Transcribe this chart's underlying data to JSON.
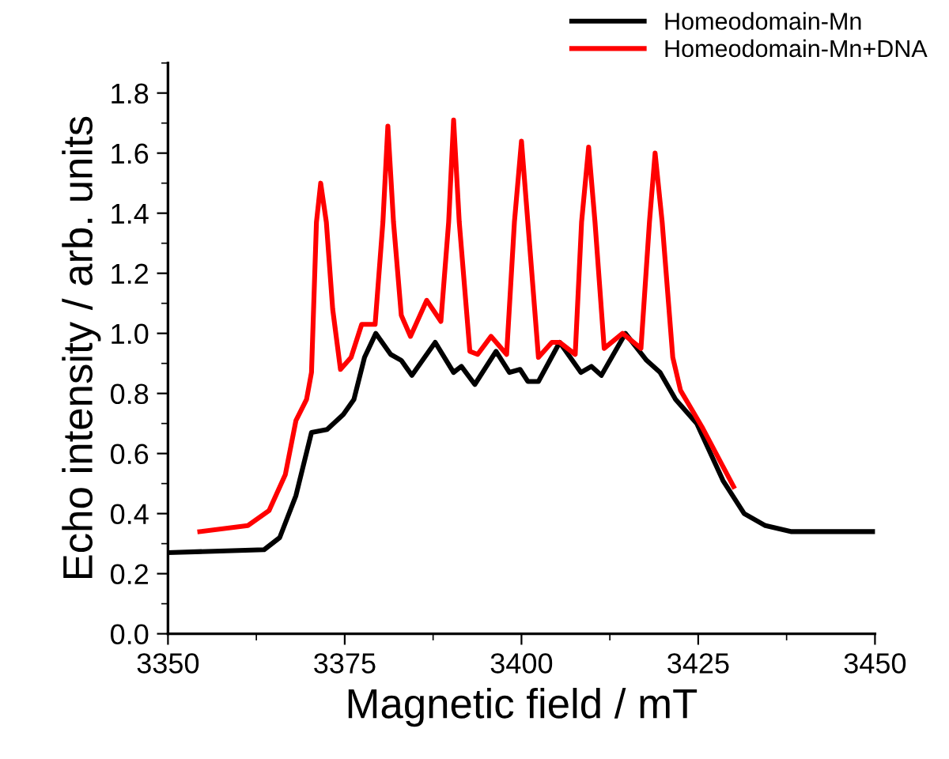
{
  "chart_data": {
    "type": "line",
    "xlabel": "Magnetic field / mT",
    "ylabel": "Echo intensity / arb. units",
    "xlim": [
      3350,
      3450
    ],
    "xticks": [
      3350,
      3375,
      3400,
      3425,
      3450
    ],
    "ylim": [
      0,
      1.9
    ],
    "yticks": [
      {
        "value": 0,
        "label": "0.0"
      },
      {
        "value": 0.2,
        "label": "0.2"
      },
      {
        "value": 0.4,
        "label": "0.4"
      },
      {
        "value": 0.6,
        "label": "0.6"
      },
      {
        "value": 0.8,
        "label": "0.8"
      },
      {
        "value": 1.0,
        "label": "1.0"
      },
      {
        "value": 1.2,
        "label": "1.2"
      },
      {
        "value": 1.4,
        "label": "1.4"
      },
      {
        "value": 1.6,
        "label": "1.6"
      },
      {
        "value": 1.8,
        "label": "1.8"
      }
    ],
    "grid": false,
    "legend": "top right",
    "marker": "none",
    "line_style": "solid",
    "series": [
      {
        "name": "Homeodomain-Mn",
        "color": "#000000",
        "x": [
          3350,
          3363.6,
          3365.8,
          3368.1,
          3370.3,
          3372.5,
          3374.8,
          3376.3,
          3377.8,
          3379.4,
          3381.5,
          3383,
          3384.5,
          3387.8,
          3390.4,
          3391.5,
          3393.4,
          3396.4,
          3398.3,
          3399.8,
          3400.9,
          3402.4,
          3405.4,
          3408.4,
          3409.9,
          3411.3,
          3414.7,
          3417.7,
          3419.6,
          3421.8,
          3424.8,
          3428.5,
          3431.5,
          3434.5,
          3438.2,
          3450
        ],
        "values": [
          0.27,
          0.28,
          0.32,
          0.46,
          0.67,
          0.68,
          0.73,
          0.78,
          0.92,
          1.0,
          0.93,
          0.91,
          0.86,
          0.97,
          0.87,
          0.89,
          0.83,
          0.94,
          0.87,
          0.88,
          0.84,
          0.84,
          0.97,
          0.87,
          0.89,
          0.86,
          1.0,
          0.91,
          0.87,
          0.78,
          0.7,
          0.51,
          0.4,
          0.36,
          0.34,
          0.34
        ]
      },
      {
        "name": "Homeodomain-Mn+DNA",
        "color": "#ff0000",
        "x": [
          3354.5,
          3361.3,
          3364.3,
          3366.6,
          3368.1,
          3369.6,
          3370.3,
          3371.0,
          3371.6,
          3372.4,
          3373.3,
          3374.4,
          3375.9,
          3377.4,
          3379.3,
          3380.4,
          3381.1,
          3381.9,
          3383.0,
          3384.3,
          3386.6,
          3388.6,
          3389.7,
          3390.4,
          3391.2,
          3392.7,
          3393.8,
          3395.7,
          3397.9,
          3399.0,
          3400.0,
          3400.9,
          3402.4,
          3404.3,
          3405.4,
          3407.6,
          3408.5,
          3409.5,
          3410.4,
          3411.7,
          3414.3,
          3416.9,
          3418.1,
          3418.9,
          3419.9,
          3421.4,
          3422.5,
          3425.5,
          3430.0
        ],
        "values": [
          0.34,
          0.36,
          0.41,
          0.53,
          0.71,
          0.78,
          0.87,
          1.37,
          1.5,
          1.37,
          1.08,
          0.88,
          0.92,
          1.03,
          1.03,
          1.37,
          1.69,
          1.37,
          1.06,
          0.99,
          1.11,
          1.04,
          1.37,
          1.71,
          1.37,
          0.94,
          0.93,
          0.99,
          0.93,
          1.37,
          1.64,
          1.37,
          0.92,
          0.97,
          0.97,
          0.93,
          1.37,
          1.62,
          1.37,
          0.95,
          1.0,
          0.95,
          1.37,
          1.6,
          1.37,
          0.92,
          0.81,
          0.69,
          0.49
        ]
      }
    ]
  }
}
